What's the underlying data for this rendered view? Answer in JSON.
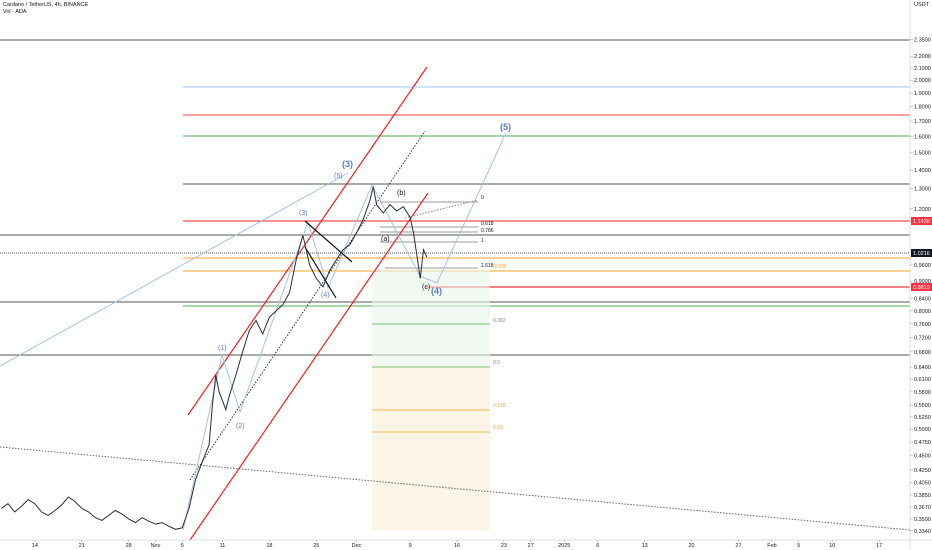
{
  "chart_data": {
    "type": "line",
    "title": "Cardano / TetherUS, 4h, BINANCE",
    "subtitle": "Vol · ADA",
    "y_axis_unit": "USDT",
    "log_scale": true,
    "color": "#2a2e39",
    "xlim": [
      -5.2,
      130.6
    ],
    "ylim": [
      0.322,
      2.75
    ],
    "xticks": [
      {
        "value": 0,
        "label": "14"
      },
      {
        "value": 7,
        "label": "21"
      },
      {
        "value": 14,
        "label": "28"
      },
      {
        "value": 18,
        "label": "Nov"
      },
      {
        "value": 22,
        "label": "5"
      },
      {
        "value": 28,
        "label": "11"
      },
      {
        "value": 35,
        "label": "18"
      },
      {
        "value": 42,
        "label": "25"
      },
      {
        "value": 48,
        "label": "Dec"
      },
      {
        "value": 56,
        "label": "9"
      },
      {
        "value": 63,
        "label": "16"
      },
      {
        "value": 70,
        "label": "23"
      },
      {
        "value": 74,
        "label": "27"
      },
      {
        "value": 79,
        "label": "2025"
      },
      {
        "value": 84,
        "label": "6"
      },
      {
        "value": 91,
        "label": "13"
      },
      {
        "value": 98,
        "label": "20"
      },
      {
        "value": 105,
        "label": "27"
      },
      {
        "value": 110,
        "label": "Feb"
      },
      {
        "value": 114,
        "label": "5"
      },
      {
        "value": 119,
        "label": "10"
      },
      {
        "value": 126,
        "label": "17"
      }
    ],
    "yticks": [
      {
        "value": 2.35,
        "label": "2.3500"
      },
      {
        "value": 2.2,
        "label": "2.2000"
      },
      {
        "value": 2.1,
        "label": "2.1000"
      },
      {
        "value": 2.0,
        "label": "2.0000"
      },
      {
        "value": 1.9,
        "label": "1.9000"
      },
      {
        "value": 1.8,
        "label": "1.8000"
      },
      {
        "value": 1.7,
        "label": "1.7000"
      },
      {
        "value": 1.6,
        "label": "1.6000"
      },
      {
        "value": 1.5,
        "label": "1.5000"
      },
      {
        "value": 1.4,
        "label": "1.4000"
      },
      {
        "value": 1.3,
        "label": "1.3000"
      },
      {
        "value": 1.2,
        "label": "1.2000"
      },
      {
        "value": 0.96,
        "label": "0.9600"
      },
      {
        "value": 0.9,
        "label": "0.9000"
      },
      {
        "value": 0.84,
        "label": "0.8400"
      },
      {
        "value": 0.8,
        "label": "0.8000"
      },
      {
        "value": 0.76,
        "label": "0.7600"
      },
      {
        "value": 0.72,
        "label": "0.7200"
      },
      {
        "value": 0.68,
        "label": "0.6800"
      },
      {
        "value": 0.64,
        "label": "0.6400"
      },
      {
        "value": 0.61,
        "label": "0.6100"
      },
      {
        "value": 0.58,
        "label": "0.5800"
      },
      {
        "value": 0.55,
        "label": "0.5500"
      },
      {
        "value": 0.525,
        "label": "0.5250"
      },
      {
        "value": 0.5,
        "label": "0.5000"
      },
      {
        "value": 0.475,
        "label": "0.4750"
      },
      {
        "value": 0.45,
        "label": "0.4500"
      },
      {
        "value": 0.425,
        "label": "0.4250"
      },
      {
        "value": 0.405,
        "label": "0.4050"
      },
      {
        "value": 0.385,
        "label": "0.3850"
      },
      {
        "value": 0.367,
        "label": "0.3670"
      },
      {
        "value": 0.35,
        "label": "0.3500"
      },
      {
        "value": 0.334,
        "label": "0.3340"
      }
    ],
    "price_labels": [
      "1.1438",
      "1.0216",
      "0.8819"
    ],
    "waves": [
      "(1)",
      "(2)",
      "(3)",
      "(4)",
      "(3)",
      "(4)",
      "(5)",
      "(a)",
      "(b)",
      "(c)"
    ],
    "fib_labels": [
      "0",
      "0.618",
      "0.786",
      "1",
      "1.618",
      "0.236",
      "0.382",
      "0.5",
      "0.618",
      "0.65"
    ],
    "x": [
      -5,
      -4,
      -3,
      -2,
      -1,
      0,
      1,
      2,
      3,
      4,
      5,
      6,
      7,
      8,
      9,
      10,
      11,
      12,
      13,
      14,
      15,
      16,
      17,
      18,
      19,
      20,
      21,
      22,
      23,
      24,
      25,
      26,
      26.5,
      27,
      27.5,
      28,
      28.5,
      29,
      30,
      31,
      32,
      33,
      34,
      35,
      36,
      37,
      38,
      39,
      40,
      40.5,
      41,
      42,
      43,
      44,
      45,
      46,
      47,
      48,
      49,
      50,
      50.5,
      51,
      52,
      53,
      54,
      55,
      56,
      56.5,
      57,
      57.5,
      58,
      58.5
    ],
    "values": [
      0.365,
      0.372,
      0.36,
      0.368,
      0.378,
      0.372,
      0.36,
      0.355,
      0.362,
      0.37,
      0.382,
      0.375,
      0.365,
      0.36,
      0.352,
      0.348,
      0.355,
      0.362,
      0.357,
      0.35,
      0.345,
      0.352,
      0.347,
      0.343,
      0.345,
      0.34,
      0.336,
      0.338,
      0.365,
      0.41,
      0.44,
      0.47,
      0.55,
      0.62,
      0.58,
      0.56,
      0.54,
      0.57,
      0.62,
      0.68,
      0.74,
      0.77,
      0.73,
      0.78,
      0.8,
      0.82,
      0.86,
      0.98,
      1.08,
      1.02,
      0.96,
      0.91,
      0.88,
      0.94,
      0.98,
      1.02,
      1.04,
      1.09,
      1.15,
      1.24,
      1.31,
      1.22,
      1.18,
      1.22,
      1.19,
      1.21,
      1.16,
      1.09,
      1.0,
      0.91,
      1.02,
      0.99
    ]
  }
}
